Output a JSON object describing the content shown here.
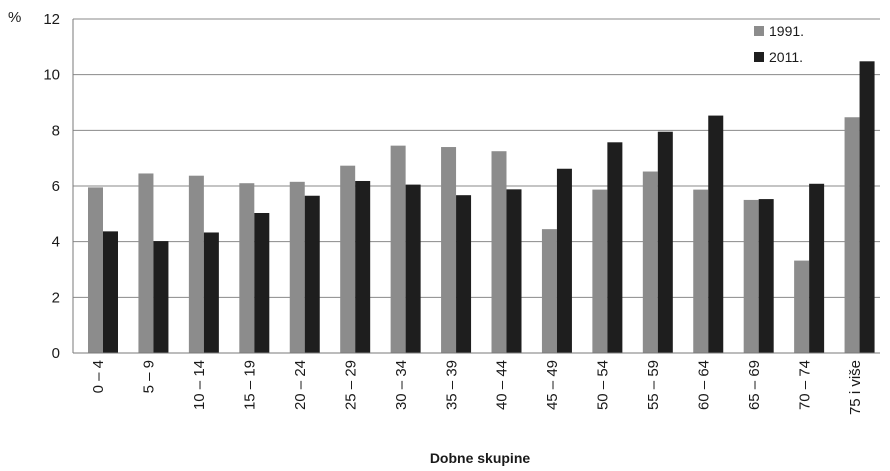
{
  "chart_data": {
    "type": "bar",
    "title": "",
    "xlabel": "Dobne skupine",
    "ylabel": "%",
    "ylim": [
      0,
      12
    ],
    "yticks": [
      0,
      2,
      4,
      6,
      8,
      10,
      12
    ],
    "grid": true,
    "legend_position": "top-right",
    "categories": [
      "0 – 4",
      "5 – 9",
      "10 – 14",
      "15 – 19",
      "20 – 24",
      "25 – 29",
      "30 – 34",
      "35 – 39",
      "40 – 44",
      "45 – 49",
      "50 – 54",
      "55 – 59",
      "60 – 64",
      "65 – 69",
      "70 – 74",
      "75 i više"
    ],
    "series": [
      {
        "name": "1991.",
        "color": "#8c8c8c",
        "values": [
          5.95,
          6.45,
          6.37,
          6.1,
          6.15,
          6.73,
          7.45,
          7.4,
          7.25,
          4.45,
          5.87,
          6.52,
          5.87,
          5.5,
          3.32,
          8.47
        ]
      },
      {
        "name": "2011.",
        "color": "#1e1e1e",
        "values": [
          4.37,
          4.02,
          4.33,
          5.03,
          5.65,
          6.18,
          6.05,
          5.67,
          5.88,
          6.62,
          7.57,
          7.95,
          8.53,
          5.53,
          6.08,
          10.48
        ]
      }
    ]
  }
}
